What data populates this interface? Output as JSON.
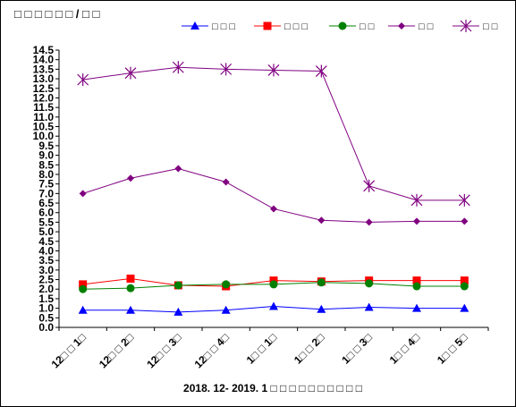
{
  "chart_data": {
    "type": "line",
    "title": "□ □  □ □ □ □ / □ □",
    "xlabel": "2018. 12- 2019. 1  □ □ □ □ □ □ □ □ □ □",
    "ylabel": "",
    "ylim": [
      0,
      14.5
    ],
    "ytick_step": 0.5,
    "yticks": [
      "0.0",
      "0.5",
      "1.0",
      "1.5",
      "2.0",
      "2.5",
      "3.0",
      "3.5",
      "4.0",
      "4.5",
      "5.0",
      "5.5",
      "6.0",
      "6.5",
      "7.0",
      "7.5",
      "8.0",
      "8.5",
      "9.0",
      "9.5",
      "10.0",
      "10.5",
      "11.0",
      "11.5",
      "12.0",
      "12.5",
      "13.0",
      "13.5",
      "14.0",
      "14.5"
    ],
    "categories": [
      "12□ □ 1□",
      "12□ □ 2□",
      "12□ □ 3□",
      "12□ □ 4□",
      "1□ □ 1□",
      "1□ □ 2□",
      "1□ □ 3□",
      "1□ □ 4□",
      "1□ □ 5□"
    ],
    "grid": false,
    "legend_position": "top",
    "series": [
      {
        "name": "□ □ □",
        "color": "#0000ff",
        "marker": "triangle",
        "values": [
          0.9,
          0.9,
          0.8,
          0.9,
          1.1,
          0.95,
          1.05,
          1.0,
          1.0
        ]
      },
      {
        "name": "□ □ □",
        "color": "#ff0000",
        "marker": "square",
        "values": [
          2.25,
          2.55,
          2.2,
          2.15,
          2.45,
          2.4,
          2.45,
          2.45,
          2.45
        ]
      },
      {
        "name": "□ □",
        "color": "#008000",
        "marker": "circle",
        "values": [
          2.0,
          2.05,
          2.2,
          2.25,
          2.25,
          2.35,
          2.3,
          2.15,
          2.15
        ]
      },
      {
        "name": "□ □",
        "color": "#800080",
        "marker": "diamond",
        "values": [
          7.0,
          7.8,
          8.3,
          7.6,
          6.2,
          5.6,
          5.5,
          5.55,
          5.55
        ]
      },
      {
        "name": "□ □",
        "color": "#800080",
        "marker": "star",
        "values": [
          12.95,
          13.3,
          13.6,
          13.5,
          13.45,
          13.4,
          7.4,
          6.65,
          6.65
        ]
      }
    ]
  }
}
